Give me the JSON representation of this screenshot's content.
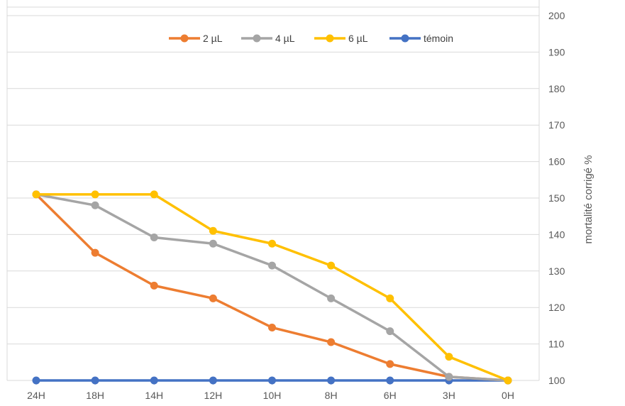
{
  "chart_data": {
    "type": "line",
    "categories": [
      "24H",
      "18H",
      "14H",
      "12H",
      "10H",
      "8H",
      "6H",
      "3H",
      "0H"
    ],
    "series": [
      {
        "name": "2 µL",
        "color": "#ED7D31",
        "values": [
          151,
          135,
          126,
          122.5,
          114.5,
          110.5,
          104.5,
          101,
          100
        ]
      },
      {
        "name": "4 µL",
        "color": "#A5A5A5",
        "values": [
          151,
          148,
          139.2,
          137.5,
          131.5,
          122.5,
          113.5,
          101,
          100
        ]
      },
      {
        "name": "6 µL",
        "color": "#FFC000",
        "values": [
          151,
          151,
          151,
          141,
          137.5,
          131.5,
          122.5,
          106.5,
          100
        ]
      },
      {
        "name": "témoin",
        "color": "#4472C4",
        "values": [
          100,
          100,
          100,
          100,
          100,
          100,
          100,
          100,
          100
        ]
      }
    ],
    "title": "",
    "xlabel": "",
    "ylabel": "mortalité corrigé %",
    "ylim": [
      100,
      200
    ],
    "yticks": [
      "100",
      "110",
      "120",
      "130",
      "140",
      "150",
      "160",
      "170",
      "180",
      "190",
      "200"
    ],
    "y_axis_position": "right",
    "grid": true,
    "legend_position": "top"
  }
}
